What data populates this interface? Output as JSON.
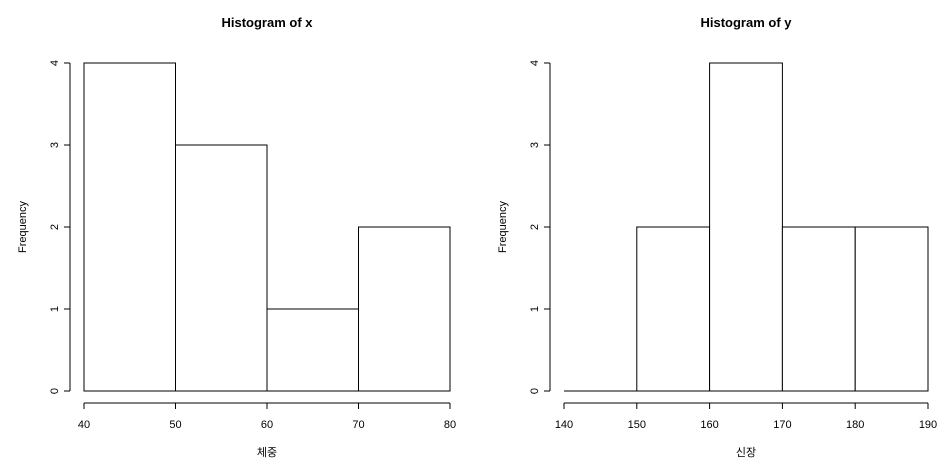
{
  "chart_data": [
    {
      "type": "histogram",
      "title": "Histogram of x",
      "xlabel": "체중",
      "ylabel": "Frequency",
      "bins": [
        [
          40,
          50
        ],
        [
          50,
          60
        ],
        [
          60,
          70
        ],
        [
          70,
          80
        ]
      ],
      "values": [
        4,
        3,
        1,
        2
      ],
      "xticks": [
        40,
        50,
        60,
        70,
        80
      ],
      "yticks": [
        0,
        1,
        2,
        3,
        4
      ],
      "xlim": [
        40,
        80
      ],
      "ylim": [
        0,
        4
      ],
      "grid": false
    },
    {
      "type": "histogram",
      "title": "Histogram of y",
      "xlabel": "신장",
      "ylabel": "Frequency",
      "bins": [
        [
          140,
          150
        ],
        [
          150,
          160
        ],
        [
          160,
          170
        ],
        [
          170,
          180
        ],
        [
          180,
          190
        ]
      ],
      "values": [
        0,
        2,
        4,
        2,
        2
      ],
      "xticks": [
        140,
        150,
        160,
        170,
        180,
        190
      ],
      "yticks": [
        0,
        1,
        2,
        3,
        4
      ],
      "xlim": [
        140,
        190
      ],
      "ylim": [
        0,
        4
      ],
      "grid": false
    }
  ]
}
